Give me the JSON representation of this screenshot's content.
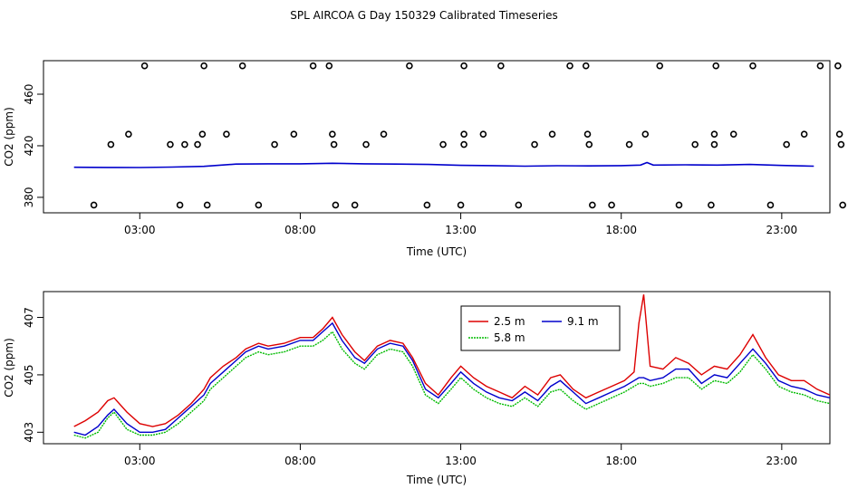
{
  "title": "SPL AIRCOA G  Day 150329  Calibrated Timeseries",
  "chart_data": [
    {
      "type": "scatter",
      "xlabel": "Time (UTC)",
      "ylabel": "CO2 (ppm)",
      "xlim": [
        0.0,
        24.5
      ],
      "ylim": [
        368,
        486
      ],
      "xticks": [
        {
          "v": 3,
          "label": "03:00"
        },
        {
          "v": 8,
          "label": "08:00"
        },
        {
          "v": 13,
          "label": "13:00"
        },
        {
          "v": 18,
          "label": "18:00"
        },
        {
          "v": 23,
          "label": "23:00"
        }
      ],
      "yticks": [
        {
          "v": 380,
          "label": "380"
        },
        {
          "v": 420,
          "label": "420"
        },
        {
          "v": 460,
          "label": "460"
        }
      ],
      "line_x": [
        0.95,
        2.0,
        3.0,
        4.0,
        5.0,
        6.0,
        7.0,
        8.0,
        9.0,
        10.0,
        11.0,
        12.0,
        13.0,
        14.0,
        15.0,
        16.0,
        17.0,
        18.0,
        18.6,
        18.8,
        19.0,
        20.0,
        21.0,
        22.0,
        23.0,
        24.0
      ],
      "line_y": [
        403.3,
        403.2,
        403.1,
        403.5,
        404.0,
        405.8,
        406.0,
        406.0,
        406.4,
        406.0,
        405.8,
        405.5,
        404.8,
        404.6,
        404.2,
        404.5,
        404.4,
        404.6,
        405.0,
        407.0,
        405.0,
        405.2,
        405.0,
        405.5,
        404.7,
        404.2
      ],
      "line_color": "#0000cc",
      "outliers": [
        {
          "x": 1.57,
          "y": 374
        },
        {
          "x": 2.1,
          "y": 421
        },
        {
          "x": 2.65,
          "y": 429
        },
        {
          "x": 3.15,
          "y": 482
        },
        {
          "x": 3.95,
          "y": 421
        },
        {
          "x": 4.25,
          "y": 374
        },
        {
          "x": 4.4,
          "y": 421
        },
        {
          "x": 5.1,
          "y": 374
        },
        {
          "x": 4.8,
          "y": 421
        },
        {
          "x": 4.95,
          "y": 429
        },
        {
          "x": 5.0,
          "y": 482
        },
        {
          "x": 5.7,
          "y": 429
        },
        {
          "x": 6.2,
          "y": 482
        },
        {
          "x": 6.7,
          "y": 374
        },
        {
          "x": 7.2,
          "y": 421
        },
        {
          "x": 7.8,
          "y": 429
        },
        {
          "x": 8.4,
          "y": 482
        },
        {
          "x": 8.9,
          "y": 482
        },
        {
          "x": 9.0,
          "y": 429
        },
        {
          "x": 9.05,
          "y": 421
        },
        {
          "x": 9.1,
          "y": 374
        },
        {
          "x": 9.7,
          "y": 374
        },
        {
          "x": 10.05,
          "y": 421
        },
        {
          "x": 10.6,
          "y": 429
        },
        {
          "x": 11.4,
          "y": 482
        },
        {
          "x": 11.95,
          "y": 374
        },
        {
          "x": 12.45,
          "y": 421
        },
        {
          "x": 13.0,
          "y": 374
        },
        {
          "x": 13.1,
          "y": 421
        },
        {
          "x": 13.1,
          "y": 429
        },
        {
          "x": 13.1,
          "y": 482
        },
        {
          "x": 13.7,
          "y": 429
        },
        {
          "x": 14.25,
          "y": 482
        },
        {
          "x": 14.8,
          "y": 374
        },
        {
          "x": 15.3,
          "y": 421
        },
        {
          "x": 15.85,
          "y": 429
        },
        {
          "x": 16.4,
          "y": 482
        },
        {
          "x": 16.9,
          "y": 482
        },
        {
          "x": 16.95,
          "y": 429
        },
        {
          "x": 17.0,
          "y": 421
        },
        {
          "x": 17.1,
          "y": 374
        },
        {
          "x": 17.7,
          "y": 374
        },
        {
          "x": 18.25,
          "y": 421
        },
        {
          "x": 18.75,
          "y": 429
        },
        {
          "x": 19.2,
          "y": 482
        },
        {
          "x": 19.8,
          "y": 374
        },
        {
          "x": 20.3,
          "y": 421
        },
        {
          "x": 20.8,
          "y": 374
        },
        {
          "x": 20.9,
          "y": 421
        },
        {
          "x": 20.9,
          "y": 429
        },
        {
          "x": 20.95,
          "y": 482
        },
        {
          "x": 21.5,
          "y": 429
        },
        {
          "x": 22.1,
          "y": 482
        },
        {
          "x": 22.65,
          "y": 374
        },
        {
          "x": 23.15,
          "y": 421
        },
        {
          "x": 23.7,
          "y": 429
        },
        {
          "x": 24.2,
          "y": 482
        },
        {
          "x": 24.75,
          "y": 482
        },
        {
          "x": 24.8,
          "y": 429
        },
        {
          "x": 24.85,
          "y": 421
        },
        {
          "x": 24.9,
          "y": 374
        }
      ]
    },
    {
      "type": "line",
      "xlabel": "Time (UTC)",
      "ylabel": "CO2 (ppm)",
      "xlim": [
        0.0,
        24.5
      ],
      "ylim": [
        402.6,
        407.9
      ],
      "xticks": [
        {
          "v": 3,
          "label": "03:00"
        },
        {
          "v": 8,
          "label": "08:00"
        },
        {
          "v": 13,
          "label": "13:00"
        },
        {
          "v": 18,
          "label": "18:00"
        },
        {
          "v": 23,
          "label": "23:00"
        }
      ],
      "yticks": [
        {
          "v": 403,
          "label": "403"
        },
        {
          "v": 405,
          "label": "405"
        },
        {
          "v": 407,
          "label": "407"
        }
      ],
      "legend": {
        "position": "top-center",
        "entries": [
          {
            "label": "2.5 m",
            "color": "#dd0000",
            "dash": "solid"
          },
          {
            "label": "9.1 m",
            "color": "#0000cc",
            "dash": "solid"
          },
          {
            "label": "5.8 m",
            "color": "#00bb00",
            "dash": "dotted"
          }
        ]
      },
      "x": [
        0.95,
        1.3,
        1.7,
        2.0,
        2.2,
        2.6,
        3.0,
        3.4,
        3.8,
        4.2,
        4.6,
        5.0,
        5.2,
        5.6,
        6.0,
        6.3,
        6.7,
        7.0,
        7.5,
        8.0,
        8.4,
        8.7,
        9.0,
        9.3,
        9.7,
        10.0,
        10.4,
        10.8,
        11.2,
        11.5,
        11.9,
        12.3,
        12.7,
        13.0,
        13.4,
        13.8,
        14.2,
        14.6,
        15.0,
        15.4,
        15.8,
        16.1,
        16.5,
        16.9,
        17.3,
        17.7,
        18.1,
        18.4,
        18.55,
        18.7,
        18.9,
        19.3,
        19.7,
        20.1,
        20.5,
        20.9,
        21.3,
        21.7,
        22.1,
        22.5,
        22.9,
        23.3,
        23.7,
        24.1,
        24.5,
        24.9
      ],
      "series": [
        {
          "name": "2.5 m",
          "color": "#dd0000",
          "dash": "solid",
          "values": [
            403.2,
            403.4,
            403.7,
            404.1,
            404.2,
            403.7,
            403.3,
            403.2,
            403.3,
            403.6,
            404.0,
            404.5,
            404.9,
            405.3,
            405.6,
            405.9,
            406.1,
            406.0,
            406.1,
            406.3,
            406.3,
            406.6,
            407.0,
            406.4,
            405.8,
            405.5,
            406.0,
            406.2,
            406.1,
            405.6,
            404.7,
            404.3,
            404.9,
            405.3,
            404.9,
            404.6,
            404.4,
            404.2,
            404.6,
            404.3,
            404.9,
            405.0,
            404.5,
            404.2,
            404.4,
            404.6,
            404.8,
            405.1,
            406.8,
            407.8,
            405.3,
            405.2,
            405.6,
            405.4,
            405.0,
            405.3,
            405.2,
            405.7,
            406.4,
            405.6,
            405.0,
            404.8,
            404.8,
            404.5,
            404.3,
            404.4
          ]
        },
        {
          "name": "9.1 m",
          "color": "#0000cc",
          "dash": "solid",
          "values": [
            403.0,
            402.9,
            403.2,
            403.6,
            403.8,
            403.3,
            403.0,
            403.0,
            403.1,
            403.5,
            403.9,
            404.3,
            404.7,
            405.1,
            405.5,
            405.8,
            406.0,
            405.9,
            406.0,
            406.2,
            406.2,
            406.5,
            406.8,
            406.2,
            405.6,
            405.4,
            405.9,
            406.1,
            406.0,
            405.5,
            404.5,
            404.2,
            404.7,
            405.1,
            404.7,
            404.4,
            404.2,
            404.1,
            404.4,
            404.1,
            404.6,
            404.8,
            404.4,
            404.0,
            404.2,
            404.4,
            404.6,
            404.8,
            404.9,
            404.9,
            404.8,
            404.9,
            405.2,
            405.2,
            404.7,
            405.0,
            404.9,
            405.4,
            405.9,
            405.4,
            404.8,
            404.6,
            404.5,
            404.3,
            404.2,
            404.1
          ]
        },
        {
          "name": "5.8 m",
          "color": "#00bb00",
          "dash": "dotted",
          "values": [
            402.9,
            402.8,
            403.0,
            403.5,
            403.7,
            403.1,
            402.9,
            402.9,
            403.0,
            403.3,
            403.7,
            404.1,
            404.5,
            404.9,
            405.3,
            405.6,
            405.8,
            405.7,
            405.8,
            406.0,
            406.0,
            406.2,
            406.5,
            405.9,
            405.4,
            405.2,
            405.7,
            405.9,
            405.8,
            405.3,
            404.3,
            404.0,
            404.5,
            404.9,
            404.5,
            404.2,
            404.0,
            403.9,
            404.2,
            403.9,
            404.4,
            404.5,
            404.1,
            403.8,
            404.0,
            404.2,
            404.4,
            404.6,
            404.7,
            404.7,
            404.6,
            404.7,
            404.9,
            404.9,
            404.5,
            404.8,
            404.7,
            405.1,
            405.7,
            405.2,
            404.6,
            404.4,
            404.3,
            404.1,
            404.0,
            404.0
          ]
        }
      ]
    }
  ]
}
